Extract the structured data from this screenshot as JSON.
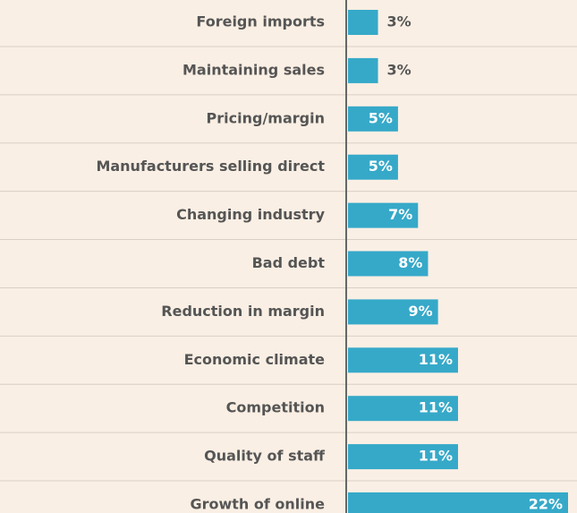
{
  "chart_data": {
    "type": "bar",
    "orientation": "horizontal",
    "categories": [
      "Foreign imports",
      "Maintaining sales",
      "Pricing/margin",
      "Manufacturers selling direct",
      "Changing industry",
      "Bad debt",
      "Reduction in margin",
      "Economic climate",
      "Competition",
      "Quality of staff",
      "Growth of online"
    ],
    "values": [
      3,
      3,
      5,
      5,
      7,
      8,
      9,
      11,
      11,
      11,
      22
    ],
    "value_labels": [
      "3%",
      "3%",
      "5%",
      "5%",
      "7%",
      "8%",
      "9%",
      "11%",
      "11%",
      "11%",
      "22%"
    ],
    "color": "#36a9c9"
  }
}
